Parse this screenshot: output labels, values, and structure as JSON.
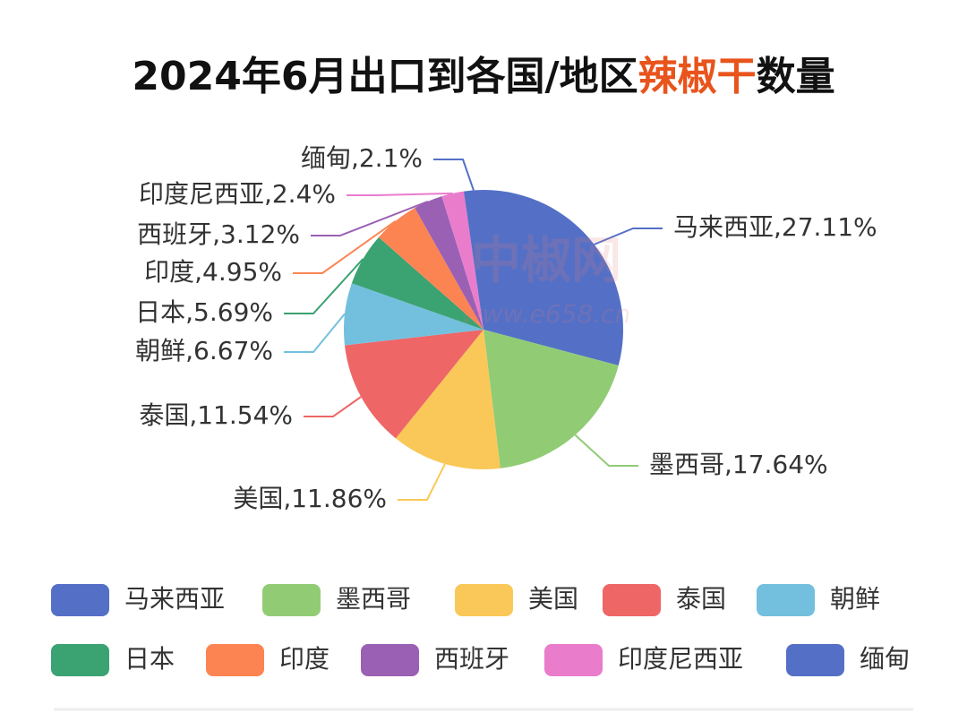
{
  "chart_data": {
    "type": "pie",
    "title_parts": [
      "2024年6月出口到各国/地区",
      "辣椒干",
      "数量"
    ],
    "title_highlight_color": "#e8541c",
    "watermark": [
      "中椒网",
      "www.e658.cn"
    ],
    "categories": [
      "马来西亚",
      "墨西哥",
      "美国",
      "泰国",
      "朝鲜",
      "日本",
      "印度",
      "西班牙",
      "印度尼西亚",
      "缅甸"
    ],
    "values": [
      27.11,
      17.64,
      11.86,
      11.54,
      6.67,
      5.69,
      4.95,
      3.12,
      2.4,
      2.1
    ],
    "value_labels": [
      "马来西亚,27.11%",
      "墨西哥,17.64%",
      "美国,11.86%",
      "泰国,11.54%",
      "朝鲜,6.67%",
      "日本,5.69%",
      "印度,4.95%",
      "西班牙,3.12%",
      "印度尼西亚,2.4%",
      "缅甸,2.1%"
    ],
    "colors": [
      "#5470c6",
      "#91cc75",
      "#fac858",
      "#ee6666",
      "#73c0de",
      "#3ba272",
      "#fc8452",
      "#9a60b4",
      "#ea7ccc",
      "#5470c6"
    ],
    "legend": "bottom"
  }
}
